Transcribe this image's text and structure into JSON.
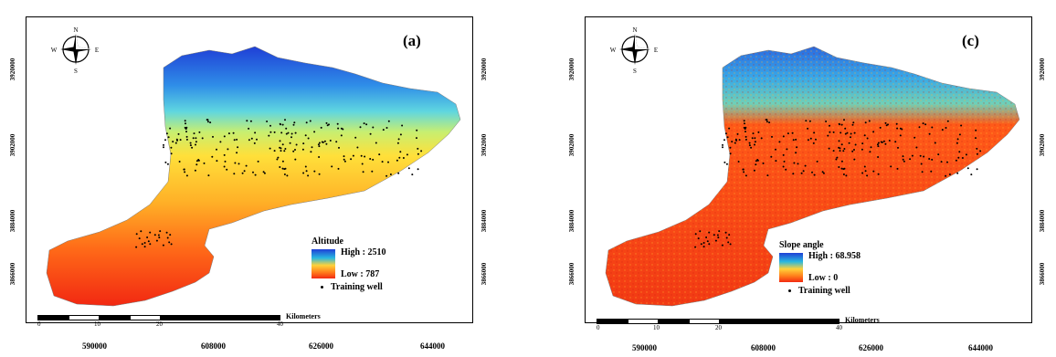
{
  "panels": [
    {
      "label": "(a)",
      "legend_title": "Altitude",
      "high": "High : 2510",
      "low": "Low : 787",
      "training": "Training well",
      "compass": {
        "n": "N",
        "s": "S",
        "e": "E",
        "w": "W"
      },
      "scale_ticks": [
        "0",
        "10",
        "20",
        "40"
      ],
      "scale_unit": "Kilometers",
      "x_ticks": [
        "590000",
        "608000",
        "626000",
        "644000"
      ],
      "y_ticks": [
        "3920000",
        "3902000",
        "3884000",
        "3866000"
      ],
      "ramp_colors": [
        "#1f3fd6",
        "#28b8e0",
        "#ffd23a",
        "#ff7a1a",
        "#f22a12"
      ]
    },
    {
      "label": "(c)",
      "legend_title": "Slope angle",
      "high": "High : 68.958",
      "low": "Low : 0",
      "training": "Training well",
      "compass": {
        "n": "N",
        "s": "S",
        "e": "E",
        "w": "W"
      },
      "scale_ticks": [
        "0",
        "10",
        "20",
        "40"
      ],
      "scale_unit": "Kilometers",
      "x_ticks": [
        "590000",
        "608000",
        "626000",
        "644000"
      ],
      "y_ticks": [
        "3920000",
        "3902000",
        "3884000",
        "3866000"
      ],
      "ramp_colors": [
        "#1f3fd6",
        "#28b8e0",
        "#ffd23a",
        "#ff7a1a",
        "#f22a12"
      ]
    }
  ]
}
